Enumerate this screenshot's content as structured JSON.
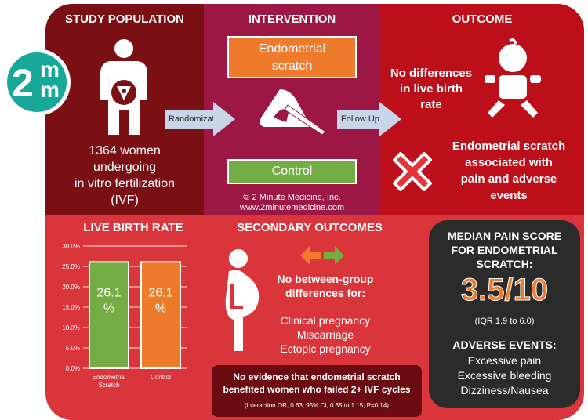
{
  "study": {
    "title": "STUDY POPULATION",
    "line1": "1364 women",
    "line2": "undergoing",
    "line3": "in vitro fertilization",
    "line4": "(IVF)"
  },
  "intervention": {
    "title": "INTERVENTION",
    "treatment_line1": "Endometrial",
    "treatment_line2": "scratch",
    "control": "Control",
    "copyright": "© 2 Minute Medicine, Inc.",
    "website": "www.2minutemedicine.com"
  },
  "arrows": {
    "randomization": "Randomization",
    "follow_up": "Follow Up"
  },
  "outcome": {
    "title": "OUTCOME",
    "no_diff_line1": "No differences",
    "no_diff_line2": "in live birth",
    "no_diff_line3": "rate",
    "scratch_line1": "Endometrial scratch",
    "scratch_line2": "associated with",
    "scratch_line3": "pain and adverse",
    "scratch_line4": "events"
  },
  "logo": {
    "top": "m",
    "left": "2",
    "bottom": "m"
  },
  "live_birth": {
    "title": "LIVE BIRTH RATE"
  },
  "chart_data": {
    "type": "bar",
    "title": "LIVE BIRTH RATE",
    "categories": [
      "Endometrial Scratch",
      "Control"
    ],
    "category_labels": [
      [
        "Endometrial",
        "Scratch"
      ],
      [
        "Control"
      ]
    ],
    "values": [
      26.1,
      26.1
    ],
    "bar_labels": [
      [
        "26.1",
        "%"
      ],
      [
        "26.1",
        "%"
      ]
    ],
    "bar_colors": [
      "#74ad45",
      "#ee7b2c"
    ],
    "yticks": [
      "0.0%",
      "5.0%",
      "10.0%",
      "15.0%",
      "20.0%",
      "25.0%",
      "30.0%"
    ],
    "ylim": [
      0,
      30
    ],
    "grid": true
  },
  "secondary": {
    "title": "SECONDARY OUTCOMES",
    "no_between_line1": "No between-group",
    "no_between_line2": "differences for:",
    "items": [
      "Clinical pregnancy",
      "Miscarriage",
      "Ectopic pregnancy"
    ],
    "evidence_line1": "No evidence that endometrial scratch",
    "evidence_line2": "benefited women who failed 2+ IVF cycles",
    "stats": "(interaction OR, 0.63; 95% CI, 0.35 to 1.15; P=0.14)"
  },
  "pain": {
    "title_line1": "MEDIAN PAIN SCORE",
    "title_line2": "FOR ENDOMETRIAL",
    "title_line3": "SCRATCH:",
    "score": "3.5/10",
    "iqr": "(IQR 1.9 to 6.0)",
    "adverse_title": "ADVERSE EVENTS:",
    "adverse_items": [
      "Excessive pain",
      "Excessive bleeding",
      "Dizziness/Nausea"
    ]
  },
  "colors": {
    "study_panel": "#7a0f14",
    "intervention_panel": "#9c1744",
    "outcome_panel": "#bd0f1a",
    "bottom_panel": "#d9353b",
    "pain_panel": "#2b2b2b",
    "score_orange": "#ee7b2c",
    "logo_teal": "#17a89a",
    "green": "#74ad45"
  },
  "icons": [
    "pregnant-woman-icon",
    "uterus-icon",
    "scratch-instrument-icon",
    "baby-icon",
    "cross-mark-icon",
    "swap-arrows-icon",
    "pregnant-woman-profile-icon"
  ]
}
